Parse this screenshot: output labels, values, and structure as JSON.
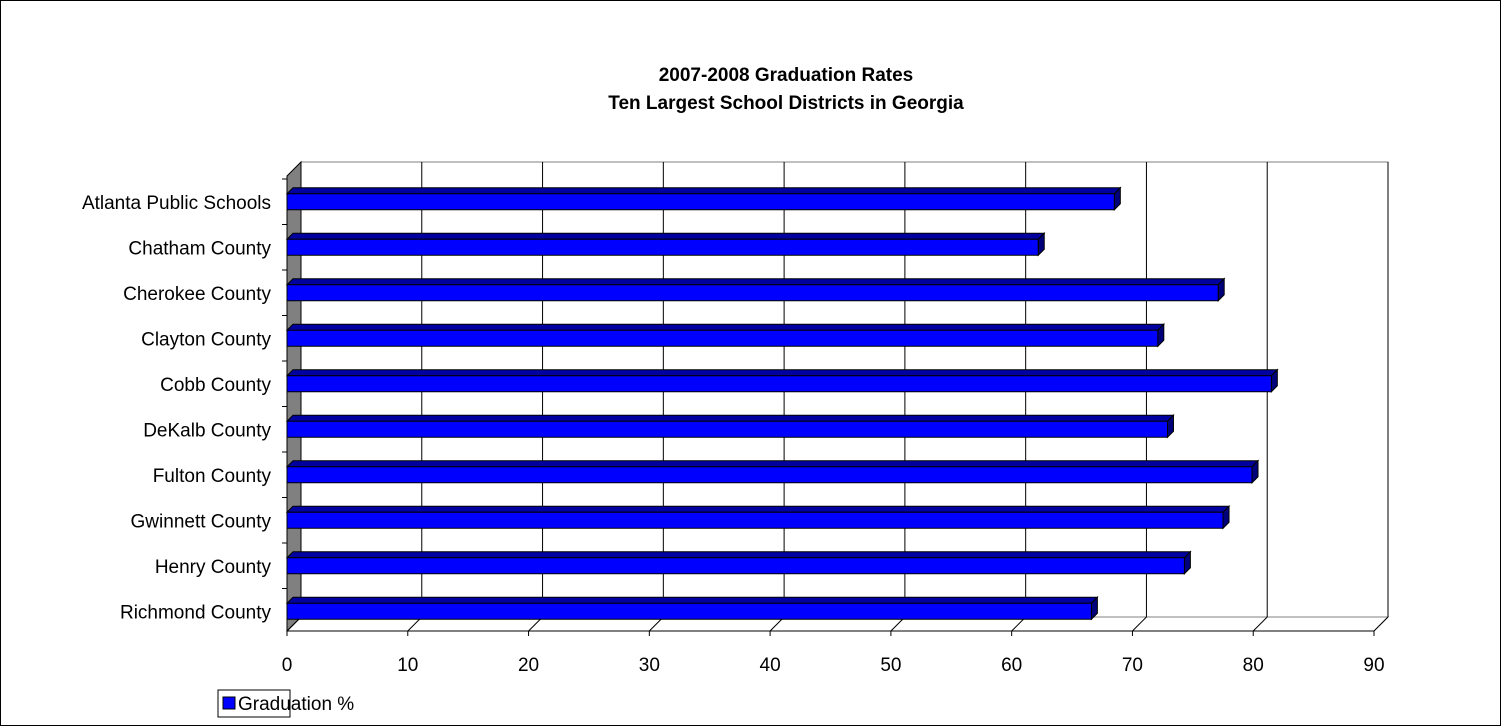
{
  "chart_data": {
    "type": "bar",
    "orientation": "horizontal",
    "title_lines": [
      "2007-2008 Graduation Rates",
      "Ten Largest School Districts in Georgia"
    ],
    "categories": [
      "Atlanta Public Schools",
      "Chatham County",
      "Cherokee County",
      "Clayton County",
      "Cobb County",
      "DeKalb County",
      "Fulton County",
      "Gwinnett County",
      "Henry County",
      "Richmond County"
    ],
    "series": [
      {
        "name": "Graduation %",
        "color": "#0000FF",
        "values": [
          68.5,
          62.2,
          77.1,
          72.1,
          81.5,
          72.9,
          79.9,
          77.5,
          74.3,
          66.6
        ]
      }
    ],
    "x_ticks": [
      "0",
      "10",
      "20",
      "30",
      "40",
      "50",
      "60",
      "70",
      "80",
      "90"
    ],
    "xlim": [
      0,
      90
    ],
    "grid": "vertical",
    "legend_position": "bottom-left",
    "style": "3d"
  },
  "colors": {
    "bar_front": "#0000FF",
    "bar_top": "#0000A0",
    "bar_side": "#00007A",
    "wall_left": "#808080",
    "grid": "#000000"
  }
}
